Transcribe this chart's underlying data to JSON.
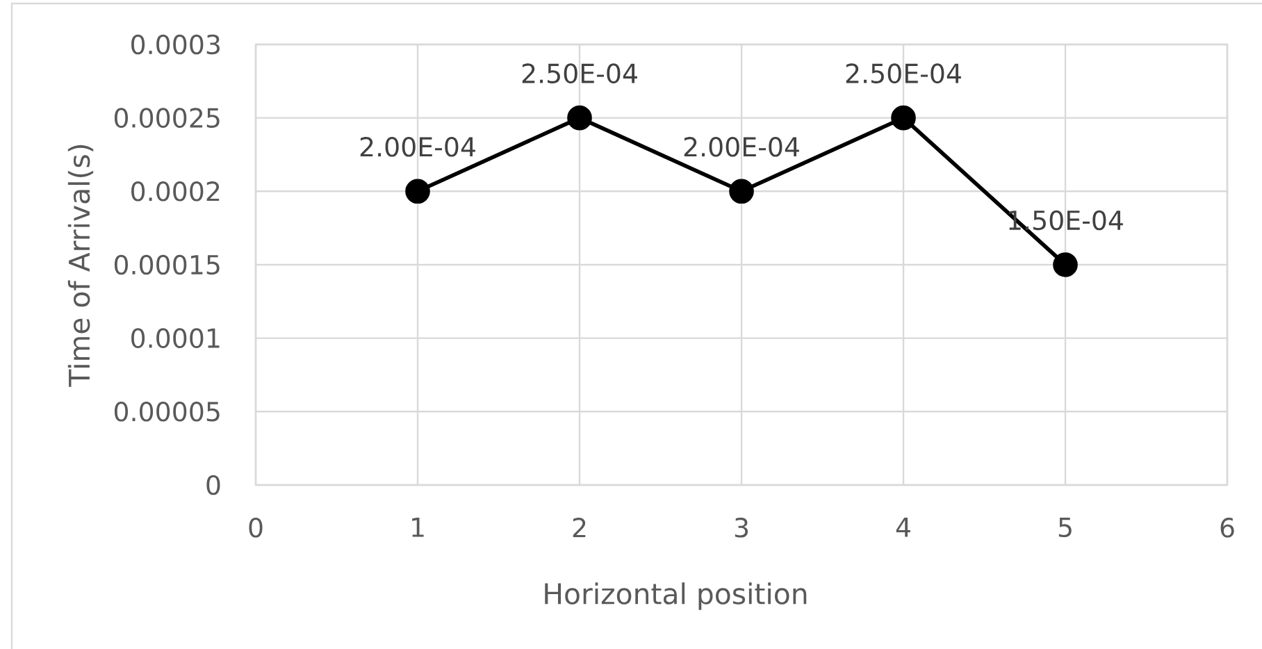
{
  "chart_data": {
    "type": "line",
    "xlabel": "Horizontal position",
    "ylabel": "Time of Arrival(s)",
    "x": [
      1,
      2,
      3,
      4,
      5
    ],
    "values": [
      0.0002,
      0.00025,
      0.0002,
      0.00025,
      0.00015
    ],
    "value_labels": [
      "2.00E-04",
      "2.50E-04",
      "2.00E-04",
      "2.50E-04",
      "1.50E-04"
    ],
    "color": "#000000",
    "xlim": [
      0,
      6
    ],
    "xticks": [
      0,
      1,
      2,
      3,
      4,
      5,
      6
    ],
    "ylim": [
      0,
      0.0003
    ],
    "yticks": [
      {
        "value": 0,
        "label": "0"
      },
      {
        "value": 5e-05,
        "label": "0.00005"
      },
      {
        "value": 0.0001,
        "label": "0.0001"
      },
      {
        "value": 0.00015,
        "label": "0.00015"
      },
      {
        "value": 0.0002,
        "label": "0.0002"
      },
      {
        "value": 0.00025,
        "label": "0.00025"
      },
      {
        "value": 0.0003,
        "label": "0.0003"
      }
    ],
    "grid": true,
    "marker": "circle",
    "line_style": "solid"
  }
}
